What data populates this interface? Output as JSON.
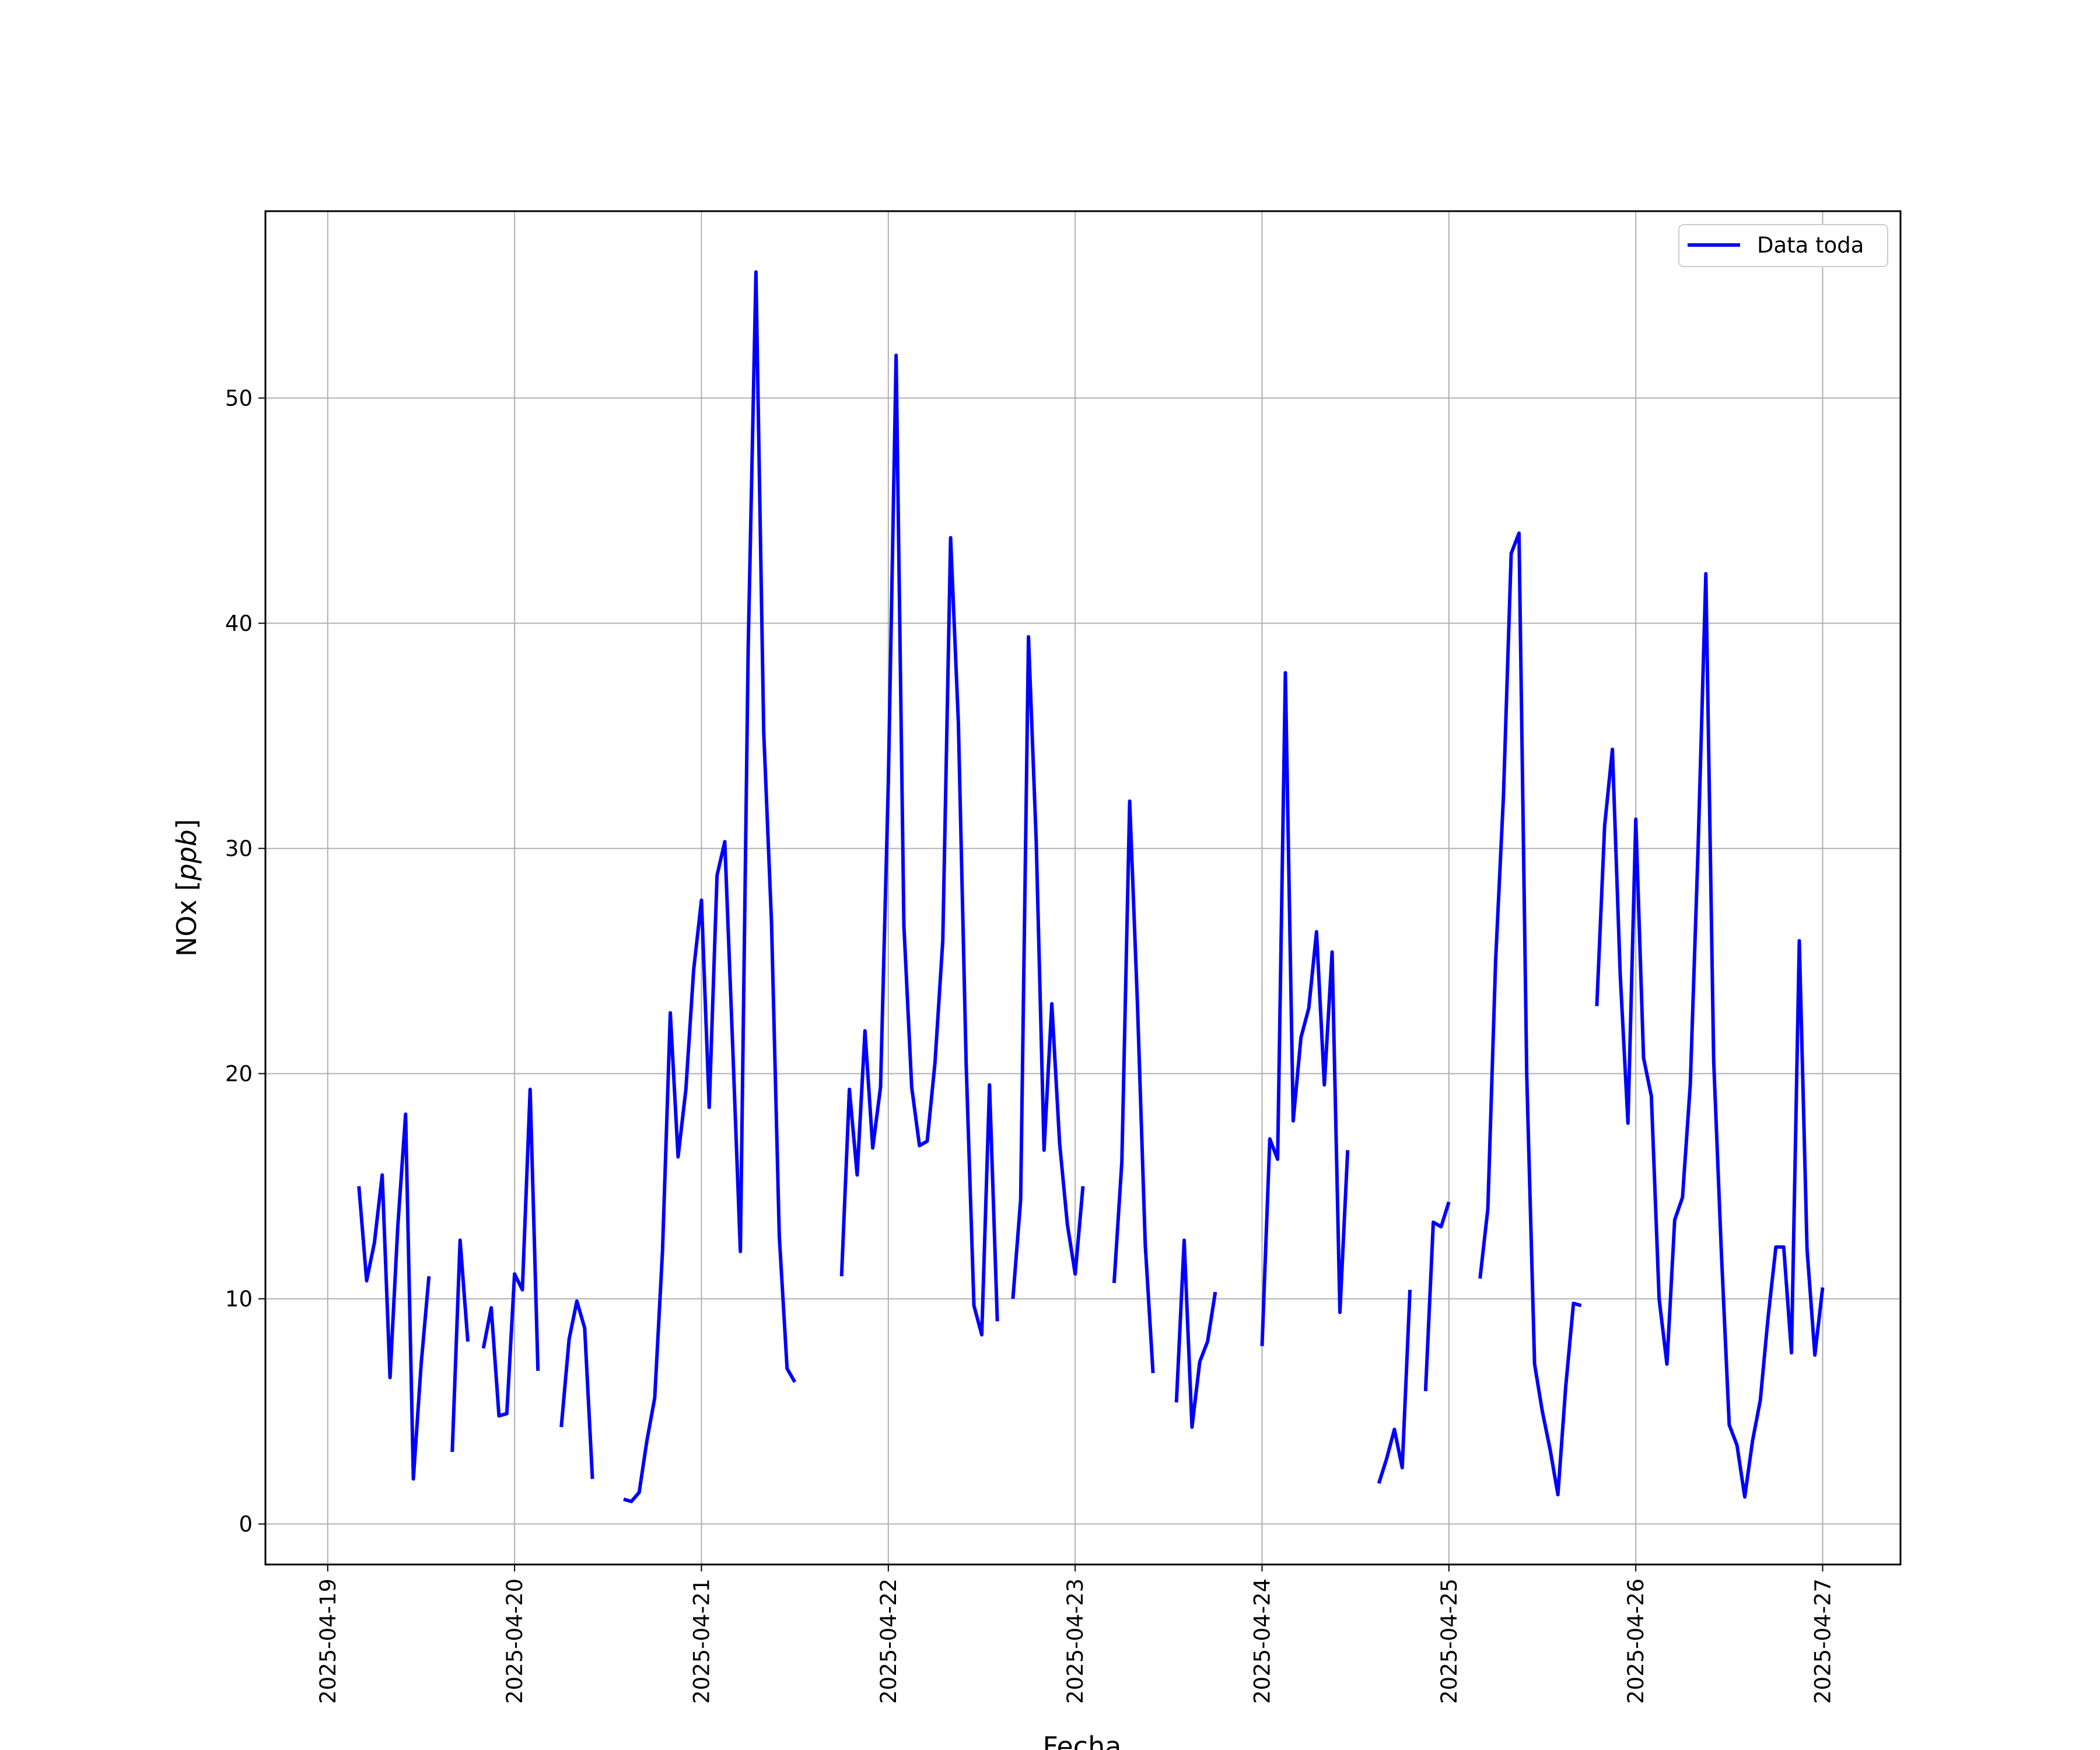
{
  "chart_data": {
    "type": "line",
    "xlabel": "Fecha",
    "ylabel": "NOx [ppb]",
    "ylabel_parts": {
      "text": "NOx",
      "open": " [",
      "unit": "ppb",
      "close": "]"
    },
    "x_ticks": [
      "2025-04-19",
      "2025-04-20",
      "2025-04-21",
      "2025-04-22",
      "2025-04-23",
      "2025-04-24",
      "2025-04-25",
      "2025-04-26",
      "2025-04-27"
    ],
    "y_ticks": [
      "0",
      "10",
      "20",
      "30",
      "40",
      "50"
    ],
    "xlim": [
      "2025-04-18T16:00",
      "2025-04-27T10:00"
    ],
    "ylim": [
      -1.8,
      58.3
    ],
    "grid": true,
    "legend_position": "top-right",
    "series": [
      {
        "name": "Data toda",
        "color": "#0000ff",
        "segments": [
          [
            [
              "2025-04-19T04:00",
              15.0
            ],
            [
              "2025-04-19T05:00",
              10.8
            ],
            [
              "2025-04-19T06:00",
              12.5
            ],
            [
              "2025-04-19T07:00",
              15.5
            ],
            [
              "2025-04-19T08:00",
              6.5
            ],
            [
              "2025-04-19T09:00",
              13.2
            ],
            [
              "2025-04-19T10:00",
              18.2
            ],
            [
              "2025-04-19T11:00",
              2.0
            ],
            [
              "2025-04-19T12:00",
              7.1
            ],
            [
              "2025-04-19T13:00",
              11.0
            ]
          ],
          [
            [
              "2025-04-19T16:00",
              3.2
            ],
            [
              "2025-04-19T17:00",
              12.6
            ],
            [
              "2025-04-19T18:00",
              8.1
            ]
          ],
          [
            [
              "2025-04-19T20:00",
              7.8
            ],
            [
              "2025-04-19T21:00",
              9.6
            ],
            [
              "2025-04-19T22:00",
              4.8
            ],
            [
              "2025-04-19T23:00",
              4.9
            ],
            [
              "2025-04-20T00:00",
              11.1
            ],
            [
              "2025-04-20T01:00",
              10.4
            ],
            [
              "2025-04-20T02:00",
              19.3
            ],
            [
              "2025-04-20T03:00",
              6.8
            ]
          ],
          [
            [
              "2025-04-20T06:00",
              4.3
            ],
            [
              "2025-04-20T07:00",
              8.2
            ],
            [
              "2025-04-20T08:00",
              9.9
            ],
            [
              "2025-04-20T09:00",
              8.7
            ],
            [
              "2025-04-20T10:00",
              2.0
            ]
          ],
          [
            [
              "2025-04-20T14:00",
              1.1
            ],
            [
              "2025-04-20T15:00",
              1.0
            ],
            [
              "2025-04-20T16:00",
              1.4
            ],
            [
              "2025-04-20T17:00",
              3.7
            ],
            [
              "2025-04-20T18:00",
              5.6
            ],
            [
              "2025-04-20T19:00",
              12.1
            ],
            [
              "2025-04-20T20:00",
              22.7
            ],
            [
              "2025-04-20T21:00",
              16.3
            ],
            [
              "2025-04-20T22:00",
              19.3
            ],
            [
              "2025-04-20T23:00",
              24.6
            ],
            [
              "2025-04-21T00:00",
              27.7
            ],
            [
              "2025-04-21T01:00",
              18.5
            ],
            [
              "2025-04-21T02:00",
              28.8
            ],
            [
              "2025-04-21T03:00",
              30.3
            ],
            [
              "2025-04-21T04:00",
              21.3
            ],
            [
              "2025-04-21T05:00",
              12.1
            ],
            [
              "2025-04-21T06:00",
              38.9
            ],
            [
              "2025-04-21T07:00",
              55.6
            ],
            [
              "2025-04-21T08:00",
              35.2
            ],
            [
              "2025-04-21T09:00",
              26.7
            ],
            [
              "2025-04-21T10:00",
              12.8
            ],
            [
              "2025-04-21T11:00",
              6.9
            ],
            [
              "2025-04-21T12:00",
              6.3
            ]
          ],
          [
            [
              "2025-04-21T18:00",
              11.0
            ],
            [
              "2025-04-21T19:00",
              19.3
            ],
            [
              "2025-04-21T20:00",
              15.5
            ],
            [
              "2025-04-21T21:00",
              21.9
            ],
            [
              "2025-04-21T22:00",
              16.7
            ],
            [
              "2025-04-21T23:00",
              19.4
            ],
            [
              "2025-04-22T00:00",
              32.9
            ],
            [
              "2025-04-22T01:00",
              51.9
            ],
            [
              "2025-04-22T02:00",
              26.6
            ],
            [
              "2025-04-22T03:00",
              19.4
            ],
            [
              "2025-04-22T04:00",
              16.8
            ],
            [
              "2025-04-22T05:00",
              17.0
            ],
            [
              "2025-04-22T06:00",
              20.5
            ],
            [
              "2025-04-22T07:00",
              25.9
            ],
            [
              "2025-04-22T08:00",
              43.8
            ],
            [
              "2025-04-22T09:00",
              35.6
            ],
            [
              "2025-04-22T10:00",
              20.4
            ],
            [
              "2025-04-22T11:00",
              9.7
            ],
            [
              "2025-04-22T12:00",
              8.4
            ],
            [
              "2025-04-22T13:00",
              19.5
            ],
            [
              "2025-04-22T14:00",
              9.0
            ]
          ],
          [
            [
              "2025-04-22T16:00",
              10.0
            ],
            [
              "2025-04-22T17:00",
              14.4
            ],
            [
              "2025-04-22T18:00",
              39.4
            ],
            [
              "2025-04-22T19:00",
              30.3
            ],
            [
              "2025-04-22T20:00",
              16.6
            ],
            [
              "2025-04-22T21:00",
              23.1
            ],
            [
              "2025-04-22T22:00",
              16.9
            ],
            [
              "2025-04-22T23:00",
              13.3
            ],
            [
              "2025-04-23T00:00",
              11.1
            ],
            [
              "2025-04-23T01:00",
              15.0
            ]
          ],
          [
            [
              "2025-04-23T05:00",
              10.7
            ],
            [
              "2025-04-23T06:00",
              16.1
            ],
            [
              "2025-04-23T07:00",
              32.1
            ],
            [
              "2025-04-23T08:00",
              23.1
            ],
            [
              "2025-04-23T09:00",
              12.4
            ],
            [
              "2025-04-23T10:00",
              6.7
            ]
          ],
          [
            [
              "2025-04-23T13:00",
              5.4
            ],
            [
              "2025-04-23T14:00",
              12.6
            ],
            [
              "2025-04-23T15:00",
              4.3
            ],
            [
              "2025-04-23T16:00",
              7.2
            ],
            [
              "2025-04-23T17:00",
              8.1
            ],
            [
              "2025-04-23T18:00",
              10.3
            ]
          ],
          [
            [
              "2025-04-24T00:00",
              7.9
            ],
            [
              "2025-04-24T01:00",
              17.1
            ],
            [
              "2025-04-24T02:00",
              16.2
            ],
            [
              "2025-04-24T03:00",
              37.8
            ],
            [
              "2025-04-24T04:00",
              17.9
            ],
            [
              "2025-04-24T05:00",
              21.6
            ],
            [
              "2025-04-24T06:00",
              22.9
            ],
            [
              "2025-04-24T07:00",
              26.3
            ],
            [
              "2025-04-24T08:00",
              19.5
            ],
            [
              "2025-04-24T09:00",
              25.4
            ],
            [
              "2025-04-24T10:00",
              9.4
            ],
            [
              "2025-04-24T11:00",
              16.6
            ]
          ],
          [
            [
              "2025-04-24T15:00",
              1.8
            ],
            [
              "2025-04-24T16:00",
              2.9
            ],
            [
              "2025-04-24T17:00",
              4.2
            ],
            [
              "2025-04-24T18:00",
              2.5
            ],
            [
              "2025-04-24T19:00",
              10.4
            ]
          ],
          [
            [
              "2025-04-24T21:00",
              5.9
            ],
            [
              "2025-04-24T22:00",
              13.4
            ],
            [
              "2025-04-24T23:00",
              13.2
            ],
            [
              "2025-04-25T00:00",
              14.3
            ]
          ],
          [
            [
              "2025-04-25T04:00",
              10.9
            ],
            [
              "2025-04-25T05:00",
              14.0
            ],
            [
              "2025-04-25T06:00",
              25.0
            ],
            [
              "2025-04-25T07:00",
              32.3
            ],
            [
              "2025-04-25T08:00",
              43.1
            ],
            [
              "2025-04-25T09:00",
              44.0
            ],
            [
              "2025-04-25T10:00",
              19.9
            ],
            [
              "2025-04-25T11:00",
              7.1
            ],
            [
              "2025-04-25T12:00",
              5.0
            ],
            [
              "2025-04-25T13:00",
              3.3
            ],
            [
              "2025-04-25T14:00",
              1.3
            ],
            [
              "2025-04-25T15:00",
              6.1
            ],
            [
              "2025-04-25T16:00",
              9.8
            ],
            [
              "2025-04-25T17:00",
              9.7
            ]
          ],
          [
            [
              "2025-04-25T19:00",
              23.0
            ],
            [
              "2025-04-25T20:00",
              31.0
            ],
            [
              "2025-04-25T21:00",
              34.4
            ],
            [
              "2025-04-25T22:00",
              24.4
            ],
            [
              "2025-04-25T23:00",
              17.8
            ],
            [
              "2025-04-26T00:00",
              31.3
            ],
            [
              "2025-04-26T01:00",
              20.7
            ],
            [
              "2025-04-26T02:00",
              19.0
            ],
            [
              "2025-04-26T03:00",
              10.0
            ],
            [
              "2025-04-26T04:00",
              7.1
            ],
            [
              "2025-04-26T05:00",
              13.5
            ],
            [
              "2025-04-26T06:00",
              14.5
            ],
            [
              "2025-04-26T07:00",
              19.5
            ],
            [
              "2025-04-26T08:00",
              30.0
            ],
            [
              "2025-04-26T09:00",
              42.2
            ],
            [
              "2025-04-26T10:00",
              20.6
            ],
            [
              "2025-04-26T11:00",
              12.0
            ],
            [
              "2025-04-26T12:00",
              4.4
            ],
            [
              "2025-04-26T13:00",
              3.5
            ],
            [
              "2025-04-26T14:00",
              1.2
            ],
            [
              "2025-04-26T15:00",
              3.7
            ],
            [
              "2025-04-26T16:00",
              5.5
            ],
            [
              "2025-04-26T17:00",
              9.2
            ],
            [
              "2025-04-26T18:00",
              12.3
            ],
            [
              "2025-04-26T19:00",
              12.3
            ],
            [
              "2025-04-26T20:00",
              7.6
            ],
            [
              "2025-04-26T21:00",
              25.9
            ],
            [
              "2025-04-26T22:00",
              12.2
            ],
            [
              "2025-04-26T23:00",
              7.5
            ],
            [
              "2025-04-27T00:00",
              10.5
            ]
          ]
        ]
      }
    ]
  }
}
